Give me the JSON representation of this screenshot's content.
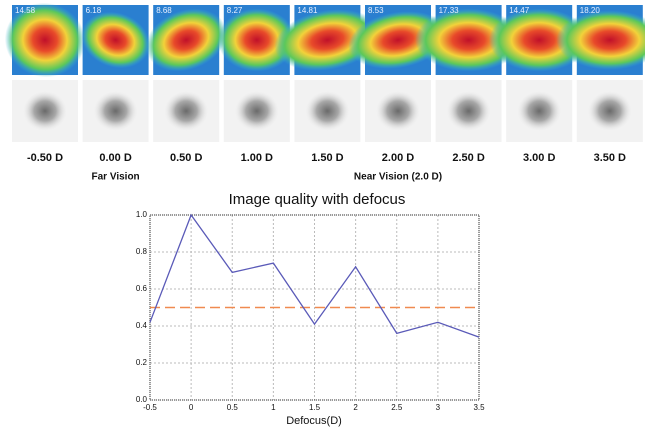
{
  "panels": [
    {
      "score": "14.58",
      "label": "-0.50 D"
    },
    {
      "score": "6.18",
      "label": "0.00 D",
      "note": "Far Vision"
    },
    {
      "score": "8.68",
      "label": "0.50 D"
    },
    {
      "score": "8.27",
      "label": "1.00 D"
    },
    {
      "score": "14.81",
      "label": "1.50 D"
    },
    {
      "score": "8.53",
      "label": "2.00 D",
      "note": "Near Vision (2.0 D)"
    },
    {
      "score": "17.33",
      "label": "2.50 D"
    },
    {
      "score": "14.47",
      "label": "3.00 D"
    },
    {
      "score": "18.20",
      "label": "3.50 D"
    }
  ],
  "chart_data": {
    "type": "line",
    "title": "Image quality with defocus",
    "xlabel": "Defocus(D)",
    "x": [
      -0.5,
      0,
      0.5,
      1,
      1.5,
      2,
      2.5,
      3,
      3.5
    ],
    "series": [
      {
        "color": "#5a5ab8",
        "values": [
          0.42,
          1.0,
          0.69,
          0.74,
          0.41,
          0.72,
          0.36,
          0.42,
          0.34
        ]
      }
    ],
    "xlim": [
      -0.5,
      3.5
    ],
    "ylim": [
      0,
      1
    ],
    "xticks": [
      -0.5,
      0,
      0.5,
      1,
      1.5,
      2,
      2.5,
      3,
      3.5
    ],
    "yticks": [
      {
        "value": 0,
        "label": "0.0"
      },
      0.2,
      0.4,
      0.6,
      0.8,
      {
        "value": 1,
        "label": "1.0"
      }
    ],
    "reference_line": {
      "value": 0.5,
      "color": "#f08a50"
    },
    "grid": true
  }
}
